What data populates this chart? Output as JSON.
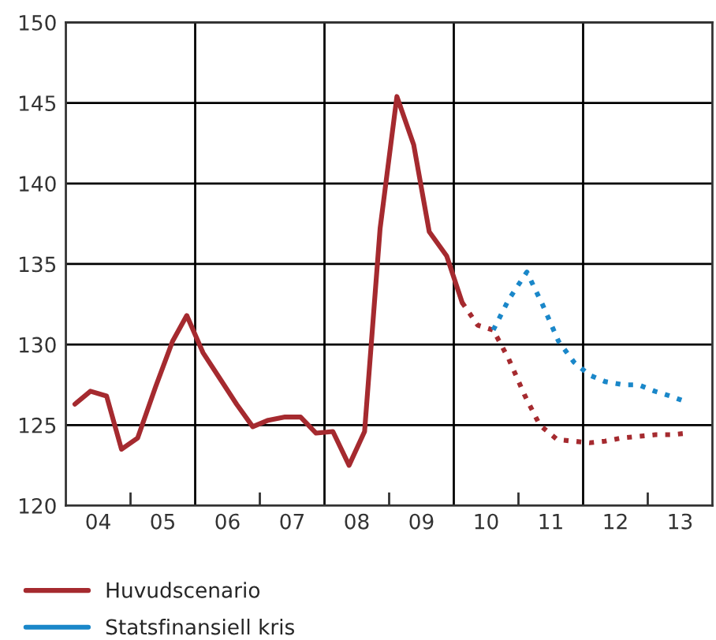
{
  "chart_data": {
    "type": "line",
    "xlim": [
      3.5,
      13.5
    ],
    "ylim": [
      120,
      150
    ],
    "yticks": [
      120,
      125,
      130,
      135,
      140,
      145,
      150
    ],
    "xticks": [
      {
        "value": 4,
        "label": "04"
      },
      {
        "value": 4.5,
        "label": null
      },
      {
        "value": 5,
        "label": "05"
      },
      {
        "value": 6,
        "label": "06"
      },
      {
        "value": 6.5,
        "label": null
      },
      {
        "value": 7,
        "label": "07"
      },
      {
        "value": 8,
        "label": "08"
      },
      {
        "value": 8.5,
        "label": null
      },
      {
        "value": 9,
        "label": "09"
      },
      {
        "value": 10,
        "label": "10"
      },
      {
        "value": 10.5,
        "label": null
      },
      {
        "value": 11,
        "label": "11"
      },
      {
        "value": 12,
        "label": "12"
      },
      {
        "value": 12.5,
        "label": null
      },
      {
        "value": 13,
        "label": "13"
      }
    ],
    "grid": "y",
    "legend": "bottom",
    "ref_lines": [
      {
        "axis": "x",
        "value": 5.5,
        "color": "#000000"
      },
      {
        "axis": "x",
        "value": 7.5,
        "color": "#000000"
      },
      {
        "axis": "x",
        "value": 9.5,
        "color": "#000000"
      },
      {
        "axis": "x",
        "value": 11.5,
        "color": "#000000"
      }
    ],
    "series": [
      {
        "name": "Huvudscenario",
        "color": "#a52a2f",
        "line_style": "solid",
        "x": [
          3.64,
          3.88,
          4.13,
          4.36,
          4.61,
          4.89,
          5.15,
          5.37,
          5.62,
          5.88,
          6.14,
          6.39,
          6.63,
          6.89,
          7.13,
          7.37,
          7.63,
          7.88,
          8.12,
          8.36,
          8.62,
          8.88,
          9.12,
          9.39,
          9.63
        ],
        "values": [
          126.3,
          127.1,
          126.8,
          123.5,
          124.2,
          127.4,
          130.2,
          131.8,
          129.5,
          127.9,
          126.3,
          124.9,
          125.3,
          125.5,
          125.5,
          124.5,
          124.6,
          122.5,
          124.6,
          137.2,
          145.4,
          142.4,
          137.0,
          135.5,
          132.6
        ]
      },
      {
        "color": "#a52a2f",
        "line_style": "dotted",
        "x": [
          9.63,
          9.87,
          10.11,
          10.35,
          10.59,
          10.83,
          11.1,
          11.35,
          11.6,
          11.84,
          12.1,
          12.36,
          12.62,
          12.87,
          13.12
        ],
        "values": [
          132.6,
          131.2,
          130.9,
          129.1,
          126.9,
          125.0,
          124.1,
          124.0,
          123.9,
          124.0,
          124.2,
          124.3,
          124.4,
          124.4,
          124.5
        ]
      },
      {
        "name": "Statsfinansiell kris",
        "color": "#1a87c9",
        "line_style": "dotted",
        "x": [
          10.11,
          10.35,
          10.63,
          10.87,
          11.12,
          11.36,
          11.6,
          11.84,
          12.12,
          12.36,
          12.61,
          12.85,
          13.12
        ],
        "values": [
          130.9,
          132.8,
          134.5,
          132.5,
          130.2,
          128.9,
          128.1,
          127.7,
          127.5,
          127.5,
          127.1,
          126.8,
          126.4
        ]
      }
    ]
  }
}
